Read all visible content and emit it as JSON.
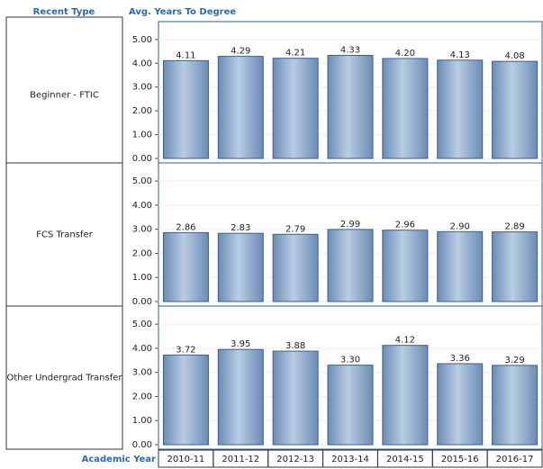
{
  "labels": {
    "row_header": "Recent Type",
    "measure": "Avg. Years To Degree",
    "x_axis": "Academic Year"
  },
  "chart_data": [
    {
      "type": "bar",
      "title": "Beginner - FTIC",
      "color": "#7f9fc6",
      "values": [
        4.11,
        4.29,
        4.21,
        4.33,
        4.2,
        4.13,
        4.08
      ],
      "value_labels": [
        "4.11",
        "4.29",
        "4.21",
        "4.33",
        "4.20",
        "4.13",
        "4.08"
      ],
      "ylim": [
        0,
        5.75
      ],
      "yticks": [
        {
          "value": 0,
          "label": "0.00"
        },
        {
          "value": 1,
          "label": "1.00"
        },
        {
          "value": 2,
          "label": "2.00"
        },
        {
          "value": 3,
          "label": "3.00"
        },
        {
          "value": 4,
          "label": "4.00"
        },
        {
          "value": 5,
          "label": "5.00"
        }
      ]
    },
    {
      "type": "bar",
      "title": "FCS Transfer",
      "color": "#7f9fc6",
      "values": [
        2.86,
        2.83,
        2.79,
        2.99,
        2.96,
        2.9,
        2.89
      ],
      "value_labels": [
        "2.86",
        "2.83",
        "2.79",
        "2.99",
        "2.96",
        "2.90",
        "2.89"
      ],
      "ylim": [
        0,
        5.75
      ],
      "yticks": [
        {
          "value": 0,
          "label": "0.00"
        },
        {
          "value": 1,
          "label": "1.00"
        },
        {
          "value": 2,
          "label": "2.00"
        },
        {
          "value": 3,
          "label": "3.00"
        },
        {
          "value": 4,
          "label": "4.00"
        },
        {
          "value": 5,
          "label": "5.00"
        }
      ]
    },
    {
      "type": "bar",
      "title": "Other Undergrad Transfer",
      "color": "#7f9fc6",
      "categories": [
        "2010-11",
        "2011-12",
        "2012-13",
        "2013-14",
        "2014-15",
        "2015-16",
        "2016-17"
      ],
      "values": [
        3.72,
        3.95,
        3.88,
        3.3,
        4.12,
        3.36,
        3.29
      ],
      "value_labels": [
        "3.72",
        "3.95",
        "3.88",
        "3.30",
        "4.12",
        "3.36",
        "3.29"
      ],
      "ylim": [
        0,
        5.75
      ],
      "yticks": [
        {
          "value": 0,
          "label": "0.00"
        },
        {
          "value": 1,
          "label": "1.00"
        },
        {
          "value": 2,
          "label": "2.00"
        },
        {
          "value": 3,
          "label": "3.00"
        },
        {
          "value": 4,
          "label": "4.00"
        },
        {
          "value": 5,
          "label": "5.00"
        }
      ]
    }
  ]
}
